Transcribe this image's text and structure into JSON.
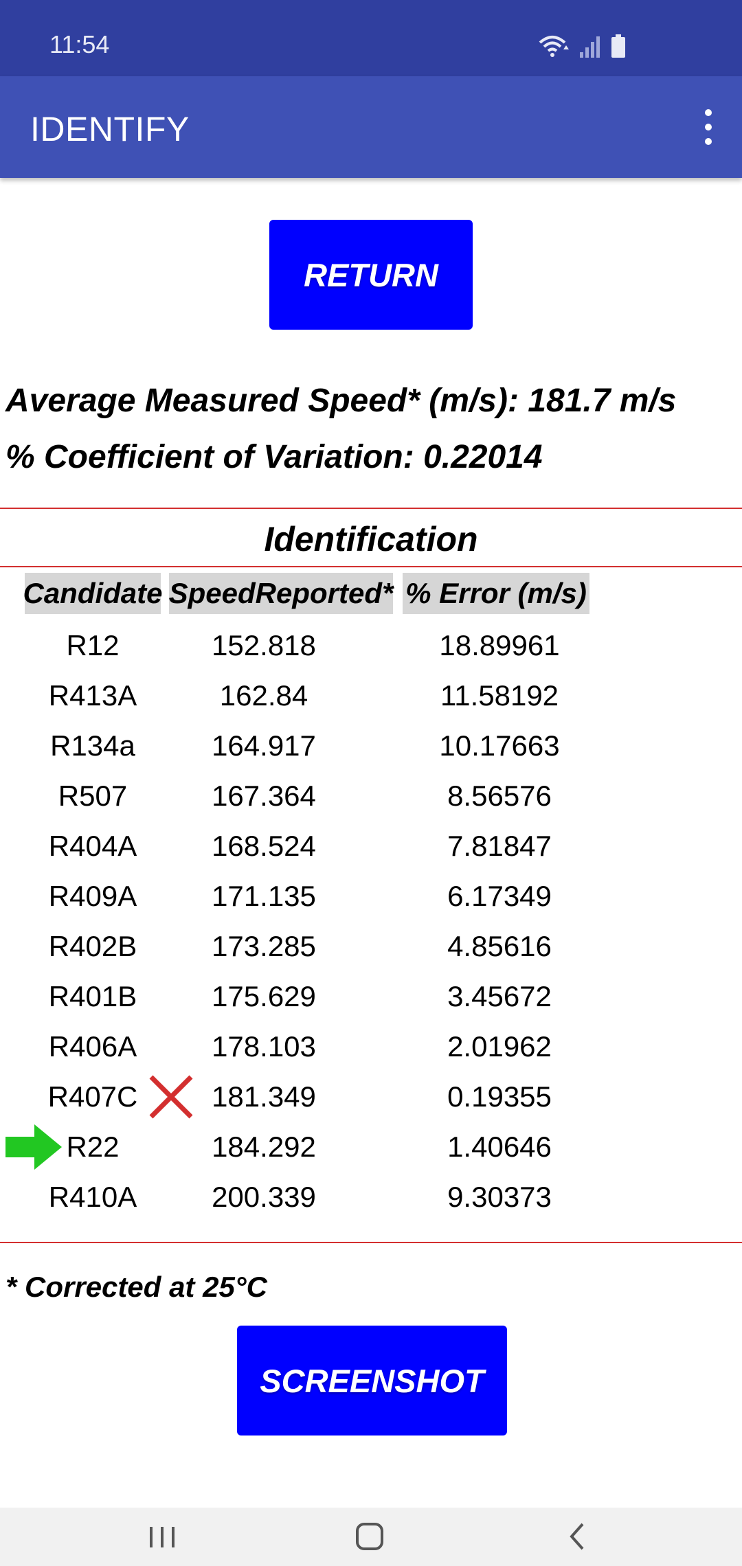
{
  "status_bar": {
    "time": "11:54"
  },
  "app_bar": {
    "title": "IDENTIFY"
  },
  "buttons": {
    "return_label": "RETURN",
    "screenshot_label": "SCREENSHOT"
  },
  "metrics": {
    "average_speed": "Average Measured Speed* (m/s): 181.7 m/s",
    "coefficient_of_variation": "% Coefficient of Variation: 0.22014"
  },
  "identification": {
    "title": "Identification",
    "headers": [
      "Candidate",
      "SpeedReported*",
      "% Error (m/s)"
    ],
    "rows": [
      {
        "candidate": "R12",
        "speed": "152.818",
        "error": "18.89961"
      },
      {
        "candidate": "R413A",
        "speed": "162.84",
        "error": "11.58192"
      },
      {
        "candidate": "R134a",
        "speed": "164.917",
        "error": "10.17663"
      },
      {
        "candidate": "R507",
        "speed": "167.364",
        "error": "8.56576"
      },
      {
        "candidate": "R404A",
        "speed": "168.524",
        "error": "7.81847"
      },
      {
        "candidate": "R409A",
        "speed": "171.135",
        "error": "6.17349"
      },
      {
        "candidate": "R402B",
        "speed": "173.285",
        "error": "4.85616"
      },
      {
        "candidate": "R401B",
        "speed": "175.629",
        "error": "3.45672"
      },
      {
        "candidate": "R406A",
        "speed": "178.103",
        "error": "2.01962"
      },
      {
        "candidate": "R407C",
        "speed": "181.349",
        "error": "0.19355"
      },
      {
        "candidate": "R22",
        "speed": "184.292",
        "error": "1.40646"
      },
      {
        "candidate": "R410A",
        "speed": "200.339",
        "error": "9.30373"
      }
    ],
    "markers": {
      "x_mark_row": "R407C",
      "x_mark_icon": "x-mark-icon",
      "arrow_row": "R22",
      "arrow_icon": "green-arrow-icon"
    }
  },
  "footnote": "* Corrected at 25°C",
  "colors": {
    "status_bar": "#303f9f",
    "app_bar": "#3f51b5",
    "button": "#0000ff",
    "divider": "#d32f2f",
    "header_bg": "#d6d6d6",
    "arrow": "#22c722",
    "x_mark": "#d32f2f"
  }
}
